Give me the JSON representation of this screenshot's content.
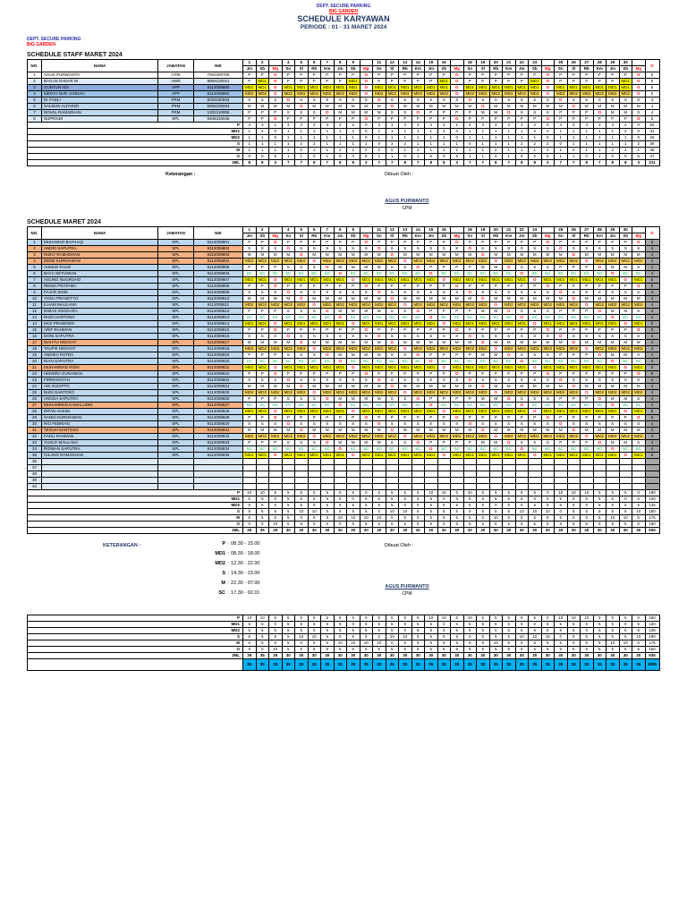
{
  "page_header": {
    "dept_line1": "DEPT. SECURE PARKING",
    "dept_line2": "BIG GARDEN",
    "title": "SCHEDULE KARYAWAN",
    "periode": "PERIODE : 01 - 31 MARET 2024",
    "left_line1": "DEPT. SECURE PARKING",
    "left_line2": "BIG GARDEN"
  },
  "calendar": {
    "day_numbers": [
      1,
      2,
      3,
      4,
      5,
      6,
      7,
      8,
      9,
      10,
      11,
      12,
      13,
      14,
      15,
      16,
      17,
      18,
      19,
      20,
      21,
      22,
      23,
      24,
      25,
      26,
      27,
      28,
      29,
      30,
      31
    ],
    "day_names": [
      "Jm",
      "Sb",
      "Mg",
      "Sn",
      "Sl",
      "Rb",
      "Km",
      "Jm",
      "Sb",
      "Mg",
      "Sn",
      "Sl",
      "Rb",
      "Km",
      "Jm",
      "Sb",
      "Mg",
      "Sn",
      "Sl",
      "Rb",
      "Km",
      "Jm",
      "Sb",
      "Mg",
      "Sn",
      "Sl",
      "Rb",
      "Km",
      "Jm",
      "Sb",
      "Mg"
    ],
    "sunday_indices": [
      3,
      10,
      17,
      24,
      31
    ]
  },
  "table_headers": {
    "no": "NO.",
    "nama": "NAMA",
    "jabatan": "JABATAN",
    "nik": "NIK",
    "total": "O"
  },
  "summary_labels": [
    "P",
    "MD1",
    "MD2",
    "S",
    "M",
    "O"
  ],
  "jml_label": "JML",
  "shift_patterns": {
    "A": "P P O P P P P P P O P P P P P P O P P P P P P O P P P P P P O",
    "B": "S S S O S S S S S S O S S S S S S O S S S S S S O S S S S S S",
    "C": "M M M M O M M M M M M O M M M M M M O M M M M M M O M M M M M",
    "D": "MD2 MD2 MD2 MD2 MD2 O MD2 MD2 MD2 MD2 MD2 MD2 O MD2 MD2 MD2 MD2 MD2 MD2 O MD2 MD2 MD2 MD2 MD2 MD2 O MD2 MD2 MD2 MD2",
    "E": "P P P S S S O M M M M S S O P P P P M M O S S S P P P O M M S",
    "F": "SC SC SC SC SC SC SC O SC SC SC SC SC SC O SC SC SC SC SC SC O SC SC SC SC SC SC O SC SC",
    "G": "MD1 MD1 O MD1 MD1 MD1 MD1 MD1 O MD1 MD1 MD1 MD1 MD1 MD1 O MD1 MD1 MD1 MD1 MD1 MD1 O MD1 MD1 MD1 MD1 MD1 MD1 O MD1",
    "H": "MD1 MD1 O MD1 MD1 MD1 MD1 MD1 MD1 O MD1 MD1 MD1 MD1 MD1 MD1 O MD1 MD1 MD1 MD1 MD1 MD1 O MD1 MD1 MD1 MD1 MD1 MD1 O",
    "I": "MD2 MD2 O MD2 MD2 MD2 MD2 MD2 MD2 O MD2 MD2 MD2 MD2 MD2 MD2 O MD2 MD2 MD2 MD2 MD2 MD2 O MD2 MD2 MD2 MD2 MD2 MD2 O",
    "J": "P MD1 O P P P P P MD1 O P P P P P MD1 O P P P P P MD1 O P P P P P MD1 O"
  },
  "section1": {
    "title": "SCHEDULE STAFF MARET 2024",
    "rows": [
      {
        "no": 1,
        "nama": "AGUS PURWANTO",
        "jabatan": "CPM",
        "nik": "7002200705",
        "fill": "#FFFFFF",
        "pattern": "A"
      },
      {
        "no": 2,
        "nama": "BAGUS DANAR W",
        "jabatan": "AWR",
        "nik": "8909120011",
        "fill": "#DEEAF6",
        "pattern": "J"
      },
      {
        "no": 3,
        "nama": "GUNTUR ADI",
        "jabatan": "APP",
        "nik": "9112008880",
        "fill": "#8EAADB",
        "pattern": "H"
      },
      {
        "no": 4,
        "nama": "MEDYA NUR JANNAH",
        "jabatan": "APP",
        "nik": "9112008882",
        "fill": "#9DC3E6",
        "pattern": "I"
      },
      {
        "no": 5,
        "nama": "M. FADLI",
        "jabatan": "FRM",
        "nik": "9201150023",
        "fill": "#BDD7EE",
        "pattern": "B"
      },
      {
        "no": 6,
        "nama": "SALMAN ALFARIZI",
        "jabatan": "FRM",
        "nik": "9305220034",
        "fill": "#BDD7EE",
        "pattern": "C"
      },
      {
        "no": 7,
        "nama": "NOVAL RAMADHAN",
        "jabatan": "FRM",
        "nik": "1302110055",
        "fill": "#BDD7EE",
        "pattern": "E"
      },
      {
        "no": 8,
        "nama": "SUPRIADI",
        "jabatan": "SPL",
        "nik": "9408310046",
        "fill": "#DEEAF6",
        "pattern": "A"
      }
    ]
  },
  "sig1": {
    "keterangan_label": "Keterangan :",
    "dibuat_label": "Dibuat Oleh :",
    "name": "AGUS PURWANTO",
    "role": "CPM"
  },
  "section2": {
    "title": "SCHEDULE MARET 2024",
    "rows": [
      {
        "no": 1,
        "nama": "MUHAMAD BAYHAQI",
        "jabatan": "SPL",
        "nik": "9112008801",
        "fill": "#BDD7EE",
        "pattern": "A"
      },
      {
        "no": 2,
        "nama": "ANDRI SAPUTRA",
        "jabatan": "SPL",
        "nik": "9112008802",
        "fill": "#F4B183",
        "pattern": "B"
      },
      {
        "no": 3,
        "nama": "RIZKY RAMADHAN",
        "jabatan": "SPL",
        "nik": "9112008803",
        "fill": "#F4B183",
        "pattern": "C"
      },
      {
        "no": 4,
        "nama": "DEDE KURNIAWAN",
        "jabatan": "SPL",
        "nik": "9112008804",
        "fill": "#F4B183",
        "pattern": "D"
      },
      {
        "no": 5,
        "nama": "AHMAD FAUZI",
        "jabatan": "SPL",
        "nik": "9112008805",
        "fill": "#BDD7EE",
        "pattern": "E"
      },
      {
        "no": 6,
        "nama": "BAYU SETIAWAN",
        "jabatan": "SPL",
        "nik": "9112008806",
        "fill": "#BDD7EE",
        "pattern": "F"
      },
      {
        "no": 7,
        "nama": "AGUNG NUGROHO",
        "jabatan": "SPL",
        "nik": "9112008807",
        "fill": "#BDD7EE",
        "pattern": "G"
      },
      {
        "no": 8,
        "nama": "RENDI PRATAMA",
        "jabatan": "SPL",
        "nik": "9112008808",
        "fill": "#BDD7EE",
        "pattern": "A"
      },
      {
        "no": 9,
        "nama": "FAJAR SIDIK",
        "jabatan": "SPL",
        "nik": "9112008809",
        "fill": "#BDD7EE",
        "pattern": "B"
      },
      {
        "no": 10,
        "nama": "YOGA PRASETYO",
        "jabatan": "SPL",
        "nik": "9112008810",
        "fill": "#BDD7EE",
        "pattern": "C"
      },
      {
        "no": 11,
        "nama": "ILHAM MAULANA",
        "jabatan": "SPL",
        "nik": "9112008811",
        "fill": "#BDD7EE",
        "pattern": "D"
      },
      {
        "no": 12,
        "nama": "DIMAS ANGGARA",
        "jabatan": "SPL",
        "nik": "9112008812",
        "fill": "#BDD7EE",
        "pattern": "E"
      },
      {
        "no": 13,
        "nama": "RUDI HARTONO",
        "jabatan": "SPL",
        "nik": "9112008813",
        "fill": "#BDD7EE",
        "pattern": "F"
      },
      {
        "no": 14,
        "nama": "EKO PRABOWO",
        "jabatan": "SPL",
        "nik": "9112008814",
        "fill": "#BDD7EE",
        "pattern": "G"
      },
      {
        "no": 15,
        "nama": "ARIF RAHMAN",
        "jabatan": "SPL",
        "nik": "9112008815",
        "fill": "#BDD7EE",
        "pattern": "A"
      },
      {
        "no": 16,
        "nama": "DONI SAPUTRA",
        "jabatan": "SPL",
        "nik": "9112008816",
        "fill": "#BDD7EE",
        "pattern": "B"
      },
      {
        "no": 17,
        "nama": "WAHYU HIDAYAT",
        "jabatan": "SPL",
        "nik": "9112008817",
        "fill": "#F4B183",
        "pattern": "C"
      },
      {
        "no": 18,
        "nama": "TAUFIK HIDAYAT",
        "jabatan": "SPL",
        "nik": "9112008818",
        "fill": "#BDD7EE",
        "pattern": "D"
      },
      {
        "no": 19,
        "nama": "ANDIKA PUTRA",
        "jabatan": "SPL",
        "nik": "9112008819",
        "fill": "#BDD7EE",
        "pattern": "E"
      },
      {
        "no": 20,
        "nama": "RIAN SAPUTRA",
        "jabatan": "SPL",
        "nik": "9112008820",
        "fill": "#BDD7EE",
        "pattern": "F"
      },
      {
        "no": 21,
        "nama": "MUHAMMAD RIZKI",
        "jabatan": "SPL",
        "nik": "9112008821",
        "fill": "#F4B183",
        "pattern": "G"
      },
      {
        "no": 22,
        "nama": "HENDRA GUNAWAN",
        "jabatan": "SPL",
        "nik": "9112008822",
        "fill": "#BDD7EE",
        "pattern": "A"
      },
      {
        "no": 23,
        "nama": "FIRMANSYAH",
        "jabatan": "SPL",
        "nik": "9112008823",
        "fill": "#BDD7EE",
        "pattern": "B"
      },
      {
        "no": 24,
        "nama": "ADI SUCIPTO",
        "jabatan": "SPL",
        "nik": "9112008824",
        "fill": "#BDD7EE",
        "pattern": "C"
      },
      {
        "no": 25,
        "nama": "BUDI SANTOSO",
        "jabatan": "SPL",
        "nik": "9112008825",
        "fill": "#BDD7EE",
        "pattern": "D"
      },
      {
        "no": 26,
        "nama": "ANGGA SAPUTRA",
        "jabatan": "SPL",
        "nik": "9112008826",
        "fill": "#BDD7EE",
        "pattern": "E"
      },
      {
        "no": 27,
        "nama": "MUHAMMAD KAMALUDIN",
        "jabatan": "SPL",
        "nik": "9112008827",
        "fill": "#F4B183",
        "pattern": "F"
      },
      {
        "no": 28,
        "nama": "IRFAN HAKIM",
        "jabatan": "SPL",
        "nik": "9112008828",
        "fill": "#BDD7EE",
        "pattern": "G"
      },
      {
        "no": 29,
        "nama": "SANDI KURNIAWAN",
        "jabatan": "SPL",
        "nik": "9112008829",
        "fill": "#BDD7EE",
        "pattern": "A"
      },
      {
        "no": 30,
        "nama": "RIO FEBRIAN",
        "jabatan": "SPL",
        "nik": "9112008830",
        "fill": "#BDD7EE",
        "pattern": "B"
      },
      {
        "no": 31,
        "nama": "TEGUH SANTOSO",
        "jabatan": "SPL",
        "nik": "9112008831",
        "fill": "#F4B183",
        "pattern": "C"
      },
      {
        "no": 32,
        "nama": "FADLI RAHMAN",
        "jabatan": "SPL",
        "nik": "9112008832",
        "fill": "#BDD7EE",
        "pattern": "D"
      },
      {
        "no": 33,
        "nama": "YUSUF MAULANA",
        "jabatan": "SPL",
        "nik": "9112008833",
        "fill": "#BDD7EE",
        "pattern": "E"
      },
      {
        "no": 34,
        "nama": "RIDWAN SAPUTRA",
        "jabatan": "SPL",
        "nik": "9112008834",
        "fill": "#BDD7EE",
        "pattern": "F"
      },
      {
        "no": 35,
        "nama": "GILANG RAMADHAN",
        "jabatan": "SPL",
        "nik": "9112008835",
        "fill": "#BDD7EE",
        "pattern": "G"
      },
      {
        "no": 36,
        "nama": "",
        "jabatan": "",
        "nik": "",
        "fill": "#DEEAF6",
        "pattern": ""
      },
      {
        "no": 37,
        "nama": "",
        "jabatan": "",
        "nik": "",
        "fill": "#DEEAF6",
        "pattern": ""
      },
      {
        "no": 38,
        "nama": "",
        "jabatan": "",
        "nik": "",
        "fill": "#DEEAF6",
        "pattern": ""
      },
      {
        "no": 39,
        "nama": "",
        "jabatan": "",
        "nik": "",
        "fill": "#DEEAF6",
        "pattern": ""
      },
      {
        "no": 40,
        "nama": "",
        "jabatan": "",
        "nik": "",
        "fill": "#DEEAF6",
        "pattern": ""
      }
    ]
  },
  "legend": {
    "title": "KETERANGAN :",
    "entries": [
      {
        "code": "P",
        "time": "08.30 - 15.00"
      },
      {
        "code": "MD1",
        "time": "08.30 - 18.00"
      },
      {
        "code": "MD2",
        "time": "12.30 - 22.00"
      },
      {
        "code": "S",
        "time": "14.30 - 23.00"
      },
      {
        "code": "M",
        "time": "22.30 - 07.00"
      },
      {
        "code": "SC",
        "time": "17.30 - 02.01"
      }
    ]
  },
  "sig2": {
    "dibuat_label": "Dibuat Oleh :",
    "name": "AGUS PURWANTO",
    "role": "CPM"
  },
  "code_styles": {
    "O": {
      "color": "#FF0000"
    },
    "SC": {
      "color": "#00B050"
    },
    "MD1": {
      "bg": "#FFFF00"
    },
    "MD2": {
      "bg": "#FFD966"
    }
  },
  "colors": {
    "header_blue": "#2E2EA8",
    "title_blue": "#203864",
    "sunday_red": "#FF0000",
    "row_blue": "#BDD7EE",
    "row_orange": "#F4B183",
    "total_col_grey": "#A6A6A6",
    "cyan_total_bar": "#00B0F0"
  }
}
